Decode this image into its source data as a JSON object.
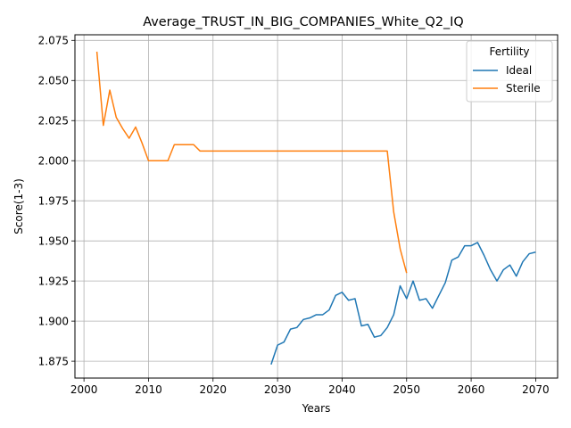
{
  "chart_data": {
    "type": "line",
    "title": "Average_TRUST_IN_BIG_COMPANIES_White_Q2_IQ",
    "xlabel": "Years",
    "ylabel": "Score(1-3)",
    "xlim": [
      1998.6,
      2073.4
    ],
    "ylim": [
      1.8645,
      2.0785
    ],
    "x_ticks": [
      2000,
      2010,
      2020,
      2030,
      2040,
      2050,
      2060,
      2070
    ],
    "y_ticks": [
      1.875,
      1.9,
      1.925,
      1.95,
      1.975,
      2.0,
      2.025,
      2.05,
      2.075
    ],
    "x_tick_labels": [
      "2000",
      "2010",
      "2020",
      "2030",
      "2040",
      "2050",
      "2060",
      "2070"
    ],
    "y_tick_labels": [
      "1.875",
      "1.900",
      "1.925",
      "1.950",
      "1.975",
      "2.000",
      "2.025",
      "2.050",
      "2.075"
    ],
    "grid": true,
    "legend": {
      "title": "Fertility",
      "placement": "top-right"
    },
    "series": [
      {
        "name": "Ideal",
        "color": "#1f77b4",
        "x": [
          2029,
          2030,
          2031,
          2032,
          2033,
          2034,
          2035,
          2036,
          2037,
          2038,
          2039,
          2040,
          2041,
          2042,
          2043,
          2044,
          2045,
          2046,
          2047,
          2048,
          2049,
          2050,
          2051,
          2052,
          2053,
          2054,
          2055,
          2056,
          2057,
          2058,
          2059,
          2060,
          2061,
          2062,
          2063,
          2064,
          2065,
          2066,
          2067,
          2068,
          2069,
          2070
        ],
        "y": [
          1.873,
          1.885,
          1.887,
          1.895,
          1.896,
          1.901,
          1.902,
          1.904,
          1.904,
          1.907,
          1.916,
          1.918,
          1.913,
          1.914,
          1.897,
          1.898,
          1.89,
          1.891,
          1.896,
          1.904,
          1.922,
          1.914,
          1.925,
          1.913,
          1.914,
          1.908,
          1.916,
          1.924,
          1.938,
          1.94,
          1.947,
          1.947,
          1.949,
          1.941,
          1.932,
          1.925,
          1.932,
          1.935,
          1.928,
          1.937,
          1.942,
          1.943
        ]
      },
      {
        "name": "Sterile",
        "color": "#ff7f0e",
        "x": [
          2002,
          2003,
          2004,
          2005,
          2006,
          2007,
          2008,
          2009,
          2010,
          2011,
          2012,
          2013,
          2014,
          2015,
          2016,
          2017,
          2018,
          2019,
          2020,
          2021,
          2022,
          2023,
          2024,
          2025,
          2026,
          2027,
          2028,
          2029,
          2030,
          2031,
          2032,
          2033,
          2034,
          2035,
          2036,
          2037,
          2038,
          2039,
          2040,
          2041,
          2042,
          2043,
          2044,
          2045,
          2046,
          2047,
          2048,
          2049,
          2050
        ],
        "y": [
          2.068,
          2.022,
          2.044,
          2.027,
          2.02,
          2.014,
          2.021,
          2.011,
          2.0,
          2.0,
          2.0,
          2.0,
          2.01,
          2.01,
          2.01,
          2.01,
          2.006,
          2.006,
          2.006,
          2.006,
          2.006,
          2.006,
          2.006,
          2.006,
          2.006,
          2.006,
          2.006,
          2.006,
          2.006,
          2.006,
          2.006,
          2.006,
          2.006,
          2.006,
          2.006,
          2.006,
          2.006,
          2.006,
          2.006,
          2.006,
          2.006,
          2.006,
          2.006,
          2.006,
          2.006,
          2.006,
          1.968,
          1.945,
          1.93
        ]
      }
    ]
  }
}
